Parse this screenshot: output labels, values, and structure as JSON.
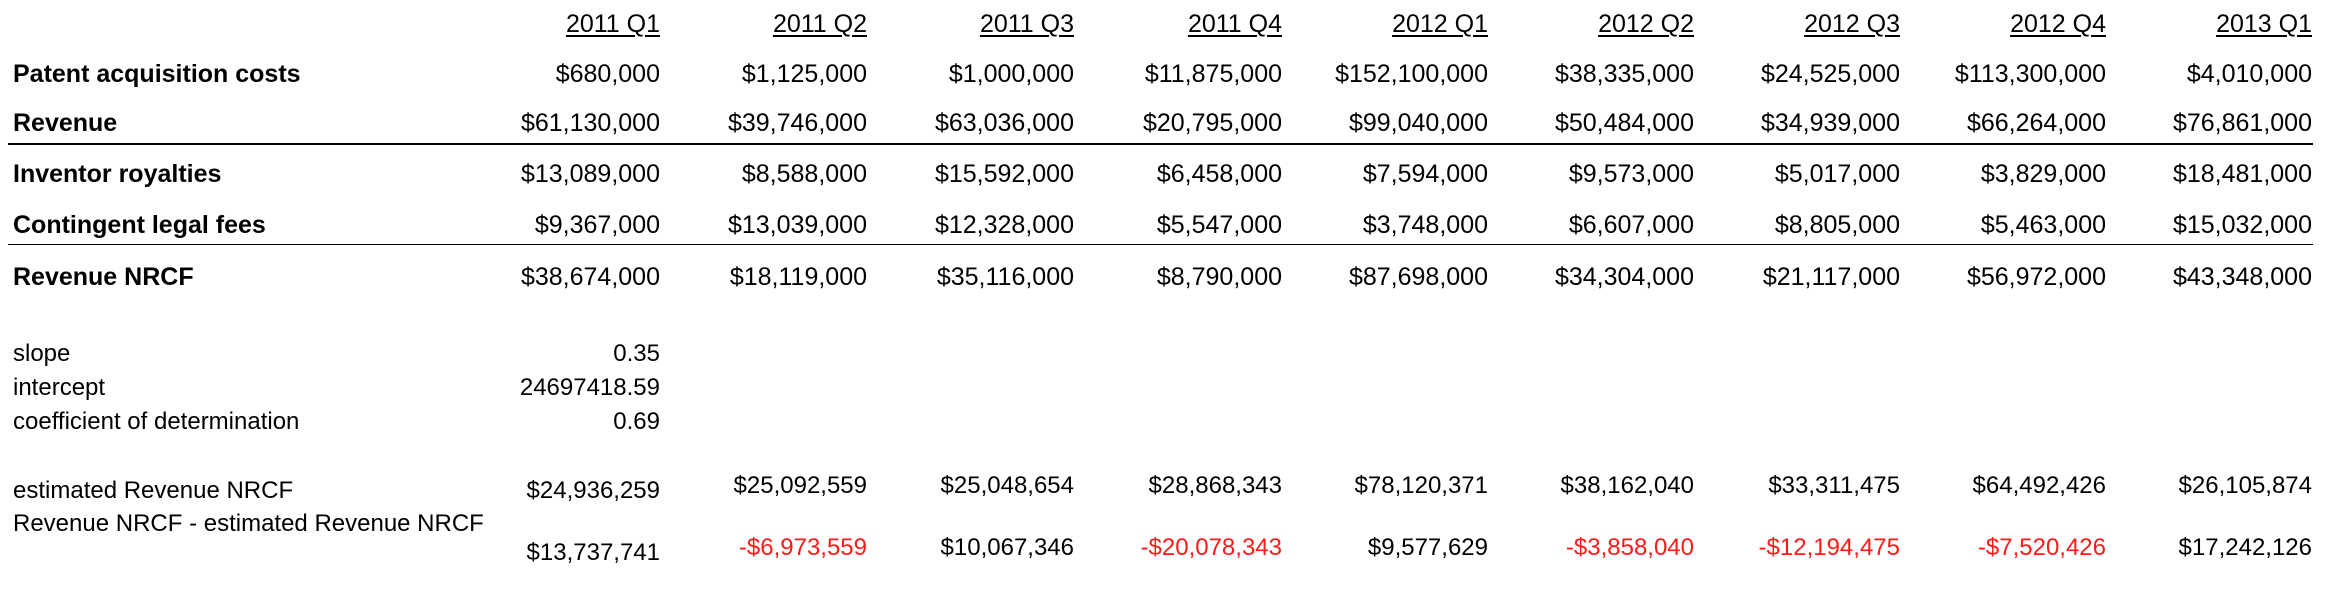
{
  "headers": [
    "2011 Q1",
    "2011 Q2",
    "2011 Q3",
    "2011 Q4",
    "2012 Q1",
    "2012 Q2",
    "2012 Q3",
    "2012 Q4",
    "2013 Q1"
  ],
  "rows": [
    {
      "label": "Patent acquisition costs",
      "values": [
        "$680,000",
        "$1,125,000",
        "$1,000,000",
        "$11,875,000",
        "$152,100,000",
        "$38,335,000",
        "$24,525,000",
        "$113,300,000",
        "$4,010,000"
      ]
    },
    {
      "label": "Revenue",
      "values": [
        "$61,130,000",
        "$39,746,000",
        "$63,036,000",
        "$20,795,000",
        "$99,040,000",
        "$50,484,000",
        "$34,939,000",
        "$66,264,000",
        "$76,861,000"
      ]
    },
    {
      "label": "Inventor royalties",
      "values": [
        "$13,089,000",
        "$8,588,000",
        "$15,592,000",
        "$6,458,000",
        "$7,594,000",
        "$9,573,000",
        "$5,017,000",
        "$3,829,000",
        "$18,481,000"
      ]
    },
    {
      "label": "Contingent legal fees",
      "values": [
        "$9,367,000",
        "$13,039,000",
        "$12,328,000",
        "$5,547,000",
        "$3,748,000",
        "$6,607,000",
        "$8,805,000",
        "$5,463,000",
        "$15,032,000"
      ]
    },
    {
      "label": "Revenue NRCF",
      "values": [
        "$38,674,000",
        "$18,119,000",
        "$35,116,000",
        "$8,790,000",
        "$87,698,000",
        "$34,304,000",
        "$21,117,000",
        "$56,972,000",
        "$43,348,000"
      ]
    }
  ],
  "stats": [
    {
      "label": "slope",
      "value": "0.35"
    },
    {
      "label": "intercept",
      "value": "24697418.59"
    },
    {
      "label": "coefficient of determination",
      "value": "0.69"
    }
  ],
  "estimated": {
    "label": "estimated Revenue NRCF",
    "values": [
      "$24,936,259",
      "$25,092,559",
      "$25,048,654",
      "$28,868,343",
      "$78,120,371",
      "$38,162,040",
      "$33,311,475",
      "$64,492,426",
      "$26,105,874"
    ]
  },
  "residual": {
    "label": "Revenue NRCF - estimated Revenue NRCF",
    "values": [
      "$13,737,741",
      "-$6,973,559",
      "$10,067,346",
      "-$20,078,343",
      "$9,577,629",
      "-$3,858,040",
      "-$12,194,475",
      "-$7,520,426",
      "$17,242,126"
    ]
  },
  "colors": {
    "negative": "#ff1a1a",
    "text": "#000000"
  }
}
